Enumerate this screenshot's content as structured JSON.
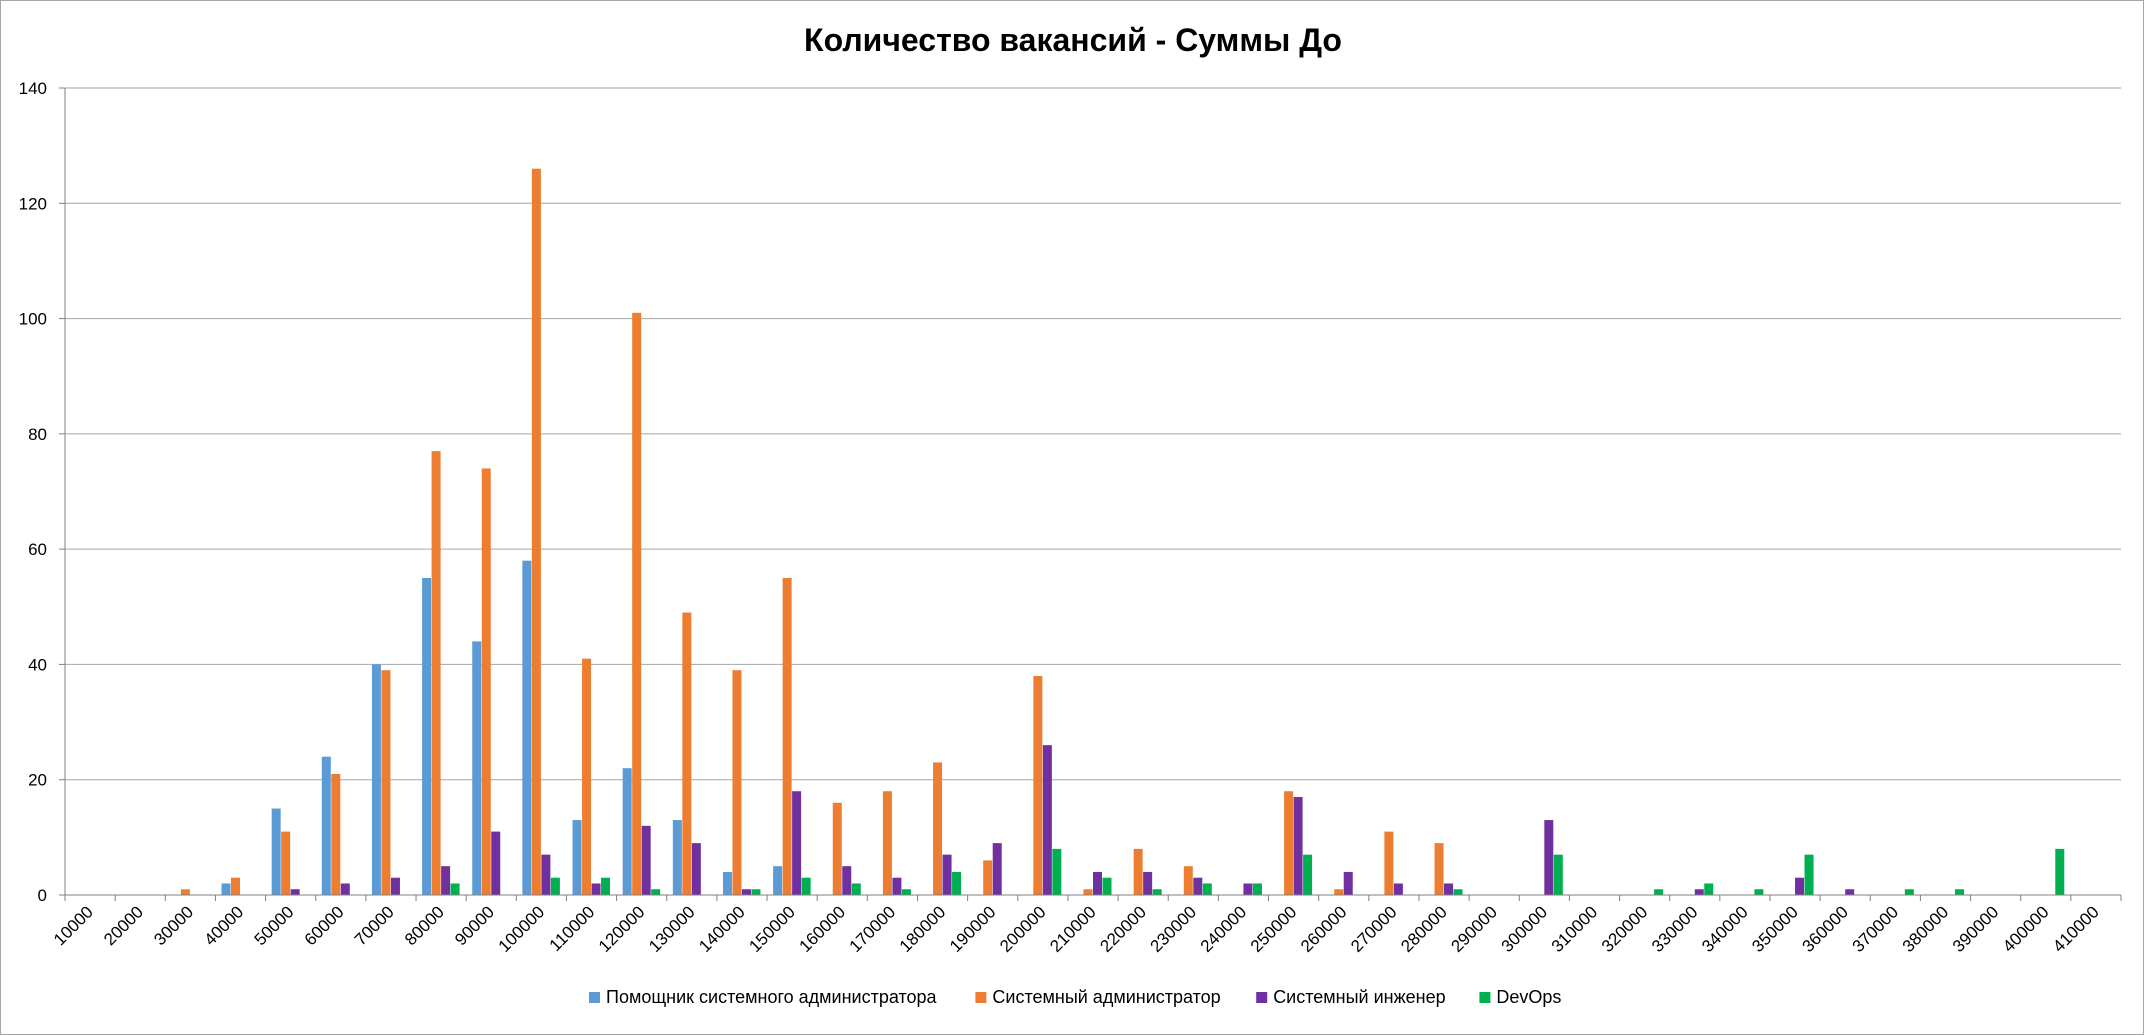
{
  "chart_data": {
    "type": "bar",
    "title": "Количество вакансий - Суммы До",
    "xlabel": "",
    "ylabel": "",
    "ylim": [
      0,
      140
    ],
    "yticks": [
      0,
      20,
      40,
      60,
      80,
      100,
      120,
      140
    ],
    "grid": true,
    "legend_position": "bottom",
    "categories": [
      "10000",
      "20000",
      "30000",
      "40000",
      "50000",
      "60000",
      "70000",
      "80000",
      "90000",
      "100000",
      "110000",
      "120000",
      "130000",
      "140000",
      "150000",
      "160000",
      "170000",
      "180000",
      "190000",
      "200000",
      "210000",
      "220000",
      "230000",
      "240000",
      "250000",
      "260000",
      "270000",
      "280000",
      "290000",
      "300000",
      "310000",
      "320000",
      "330000",
      "340000",
      "350000",
      "360000",
      "370000",
      "380000",
      "390000",
      "400000",
      "410000"
    ],
    "series": [
      {
        "name": "Помощник системного администратора",
        "color": "#5b9bd5",
        "values": [
          0,
          0,
          0,
          2,
          15,
          24,
          40,
          55,
          44,
          58,
          13,
          22,
          13,
          4,
          5,
          0,
          0,
          0,
          0,
          0,
          0,
          0,
          0,
          0,
          0,
          0,
          0,
          0,
          0,
          0,
          0,
          0,
          0,
          0,
          0,
          0,
          0,
          0,
          0,
          0,
          0
        ]
      },
      {
        "name": "Системный администратор",
        "color": "#ed7d31",
        "values": [
          0,
          0,
          1,
          3,
          11,
          21,
          39,
          77,
          74,
          126,
          41,
          101,
          49,
          39,
          55,
          16,
          18,
          23,
          6,
          38,
          1,
          8,
          5,
          0,
          18,
          1,
          11,
          9,
          0,
          0,
          0,
          0,
          0,
          0,
          0,
          0,
          0,
          0,
          0,
          0,
          0
        ]
      },
      {
        "name": "Системный инженер",
        "color": "#7030a0",
        "values": [
          0,
          0,
          0,
          0,
          1,
          2,
          3,
          5,
          11,
          7,
          2,
          12,
          9,
          1,
          18,
          5,
          3,
          7,
          9,
          26,
          4,
          4,
          3,
          2,
          17,
          4,
          2,
          2,
          0,
          13,
          0,
          0,
          1,
          0,
          3,
          1,
          0,
          0,
          0,
          0,
          0
        ]
      },
      {
        "name": "DevOps",
        "color": "#00b050",
        "values": [
          0,
          0,
          0,
          0,
          0,
          0,
          0,
          2,
          0,
          3,
          3,
          1,
          0,
          1,
          3,
          2,
          1,
          4,
          0,
          8,
          3,
          1,
          2,
          2,
          7,
          0,
          0,
          1,
          0,
          7,
          0,
          1,
          2,
          1,
          7,
          0,
          1,
          1,
          0,
          8,
          0
        ]
      }
    ]
  }
}
